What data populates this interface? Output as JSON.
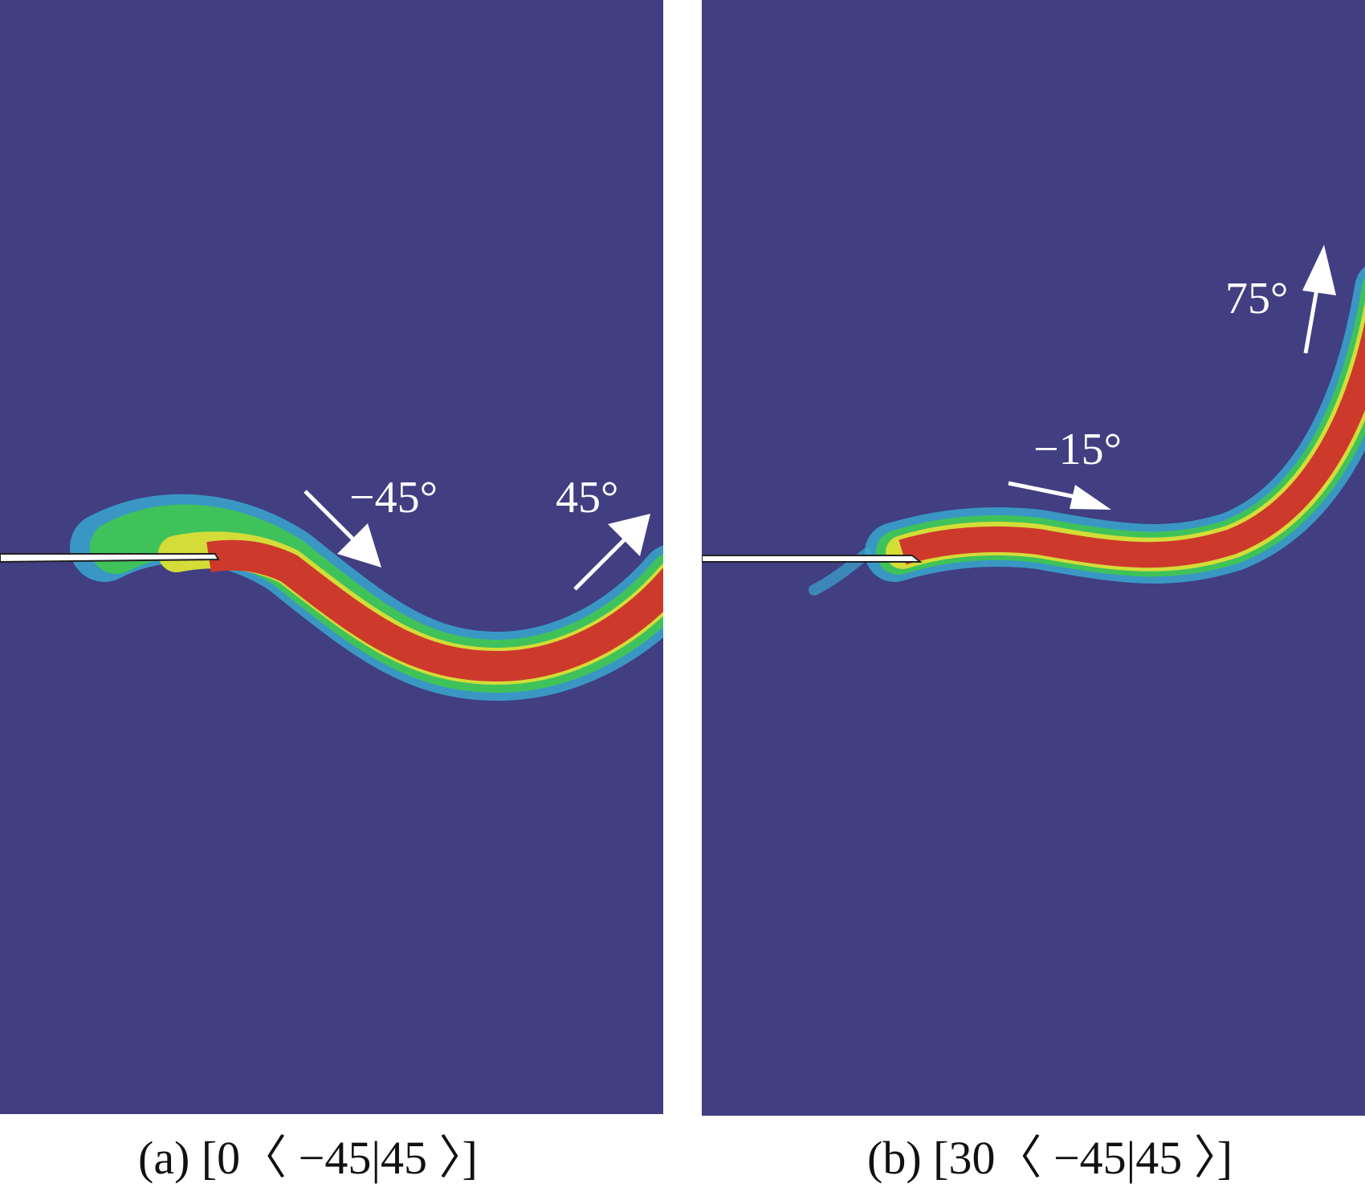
{
  "colors": {
    "background": "#413e82",
    "band_outer": "#3aa7cf",
    "band_mid": "#3fc25a",
    "band_inner": "#d4dc38",
    "core": "#cd3a2c",
    "notch": "#ffffff",
    "annotation": "#ffffff"
  },
  "panels": [
    {
      "id": "a",
      "labels": {
        "first": "−45°",
        "second": "45°"
      },
      "caption": "(a) [0〈 −45|45 〉]"
    },
    {
      "id": "b",
      "labels": {
        "first": "−15°",
        "second": "75°"
      },
      "caption": "(b) [30〈 −45|45 〉]"
    }
  ]
}
